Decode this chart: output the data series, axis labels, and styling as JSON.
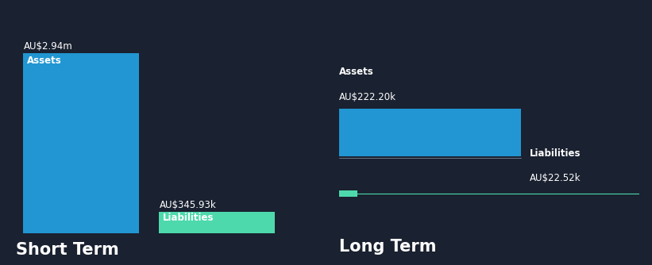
{
  "background_color": "#1a2130",
  "short_term": {
    "assets_value": 2940000,
    "assets_label": "AU$2.94m",
    "assets_color": "#2196d3",
    "liabilities_value": 345930,
    "liabilities_label": "AU$345.93k",
    "liabilities_color": "#4dd9ac",
    "bar_label_assets": "Assets",
    "bar_label_liabilities": "Liabilities",
    "section_label": "Short Term"
  },
  "long_term": {
    "assets_value": 222200,
    "assets_label": "AU$222.20k",
    "assets_color": "#2196d3",
    "liabilities_value": 22520,
    "liabilities_label": "AU$22.52k",
    "liabilities_color": "#4dd9ac",
    "bar_label_assets": "Assets",
    "bar_label_liabilities": "Liabilities",
    "section_label": "Long Term"
  },
  "text_color": "#ffffff",
  "label_fontsize": 8.5,
  "section_fontsize": 15,
  "value_fontsize": 8.5
}
